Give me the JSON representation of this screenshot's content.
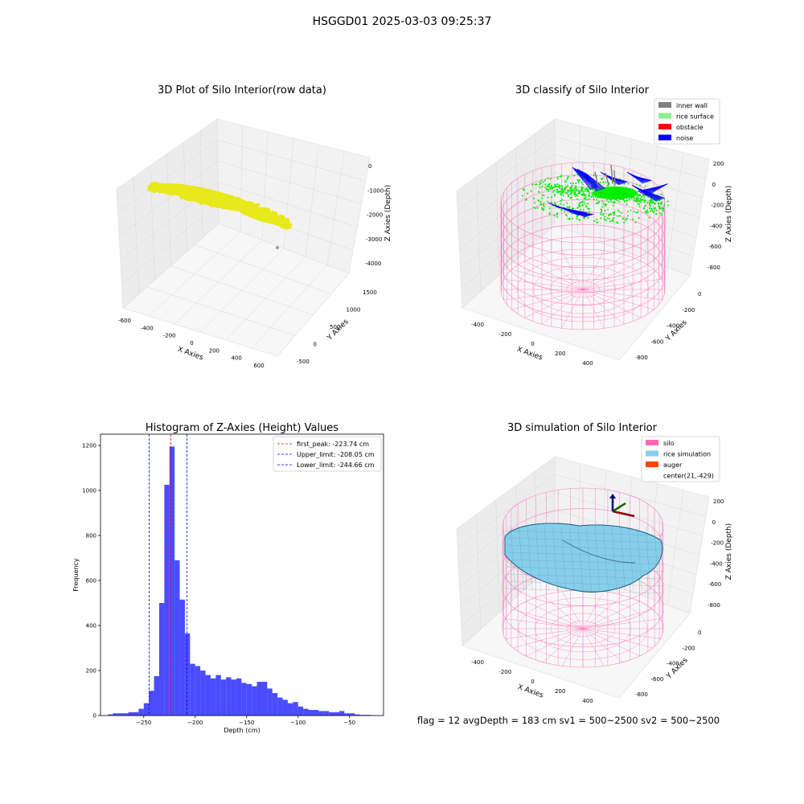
{
  "suptitle": "HSGGD01 2025-03-03 09:25:37",
  "panels": {
    "raw": {
      "title": "3D Plot of Silo Interior(row data)",
      "xlabel": "X Axies",
      "ylabel": "Y Axies",
      "zlabel": "Z Axies (Depth)",
      "xticks": [
        "-600",
        "-400",
        "-200",
        "0",
        "200",
        "400",
        "600"
      ],
      "yticks": [
        "-500",
        "0",
        "500",
        "1000",
        "1500"
      ],
      "zticks": [
        "0",
        "-1000",
        "-2000",
        "-3000",
        "-4000"
      ],
      "point_color": "#e8e81a"
    },
    "classify": {
      "title": "3D classify of Silo Interior",
      "xlabel": "X Axies",
      "ylabel": "Y Axies",
      "zlabel": "Z Axies (Depth)",
      "xticks": [
        "-400",
        "-200",
        "0",
        "200",
        "400"
      ],
      "yticks": [
        "0",
        "-200",
        "-400",
        "-600",
        "-800"
      ],
      "zticks": [
        "200",
        "0",
        "-200",
        "-400",
        "-600",
        "-800"
      ],
      "legend": [
        {
          "label": "inner wall",
          "color": "#808080"
        },
        {
          "label": "rice surface",
          "color": "#90ee90"
        },
        {
          "label": "obstacle",
          "color": "#ff0000"
        },
        {
          "label": "noise",
          "color": "#0000ff"
        }
      ]
    },
    "simulation": {
      "title": "3D simulation of Silo Interior",
      "xlabel": "X Axies",
      "ylabel": "Y Axies",
      "zlabel": "Z Axies (Depth)",
      "xticks": [
        "-400",
        "-200",
        "0",
        "200",
        "400"
      ],
      "yticks": [
        "0",
        "-200",
        "-400",
        "-600",
        "-800"
      ],
      "zticks": [
        "200",
        "0",
        "-200",
        "-400",
        "-600",
        "-800"
      ],
      "legend": [
        {
          "label": "silo",
          "color": "#ff69b4"
        },
        {
          "label": "rice simulation",
          "color": "#87ceeb"
        },
        {
          "label": "auger",
          "color": "#ff4500"
        },
        {
          "label": "center(21,-429)",
          "color": ""
        }
      ]
    }
  },
  "status_line": "flag = 12   avgDepth = 183 cm  sv1 = 500~2500  sv2 = 500~2500",
  "chart_data": {
    "type": "bar",
    "title": "Histogram of Z-Axies (Height) Values",
    "xlabel": "Depth (cm)",
    "ylabel": "Frequency",
    "xlim": [
      -292,
      -17
    ],
    "ylim": [
      0,
      1250
    ],
    "xticks": [
      -250,
      -200,
      -150,
      -100,
      -50
    ],
    "yticks": [
      0,
      200,
      400,
      600,
      800,
      1000,
      1200
    ],
    "bin_width": 5,
    "bin_starts": [
      -285,
      -280,
      -275,
      -270,
      -265,
      -260,
      -255,
      -250,
      -245,
      -240,
      -235,
      -230,
      -225,
      -220,
      -215,
      -210,
      -205,
      -200,
      -195,
      -190,
      -185,
      -180,
      -175,
      -170,
      -165,
      -160,
      -155,
      -150,
      -145,
      -140,
      -135,
      -130,
      -125,
      -120,
      -115,
      -110,
      -105,
      -100,
      -95,
      -90,
      -85,
      -80,
      -75,
      -70,
      -65,
      -60,
      -55,
      -50,
      -45,
      -40,
      -35,
      -30
    ],
    "values": [
      5,
      10,
      10,
      10,
      15,
      15,
      30,
      55,
      110,
      175,
      500,
      1025,
      1195,
      690,
      515,
      365,
      230,
      220,
      200,
      180,
      165,
      180,
      160,
      170,
      160,
      165,
      145,
      140,
      130,
      150,
      150,
      120,
      100,
      80,
      70,
      55,
      60,
      40,
      30,
      25,
      25,
      20,
      20,
      15,
      15,
      20,
      10,
      10,
      5,
      3,
      3,
      2
    ],
    "bar_color": "#0000ff",
    "lines": [
      {
        "label": "first_peak: -223.74 cm",
        "x": -223.74,
        "color": "#ff0000"
      },
      {
        "label": "Upper_limit: -208.05 cm",
        "x": -208.05,
        "color": "#0000ff"
      },
      {
        "label": "Lower_limit: -244.66 cm",
        "x": -244.66,
        "color": "#0000ff"
      }
    ],
    "legend_position": "top-right"
  }
}
